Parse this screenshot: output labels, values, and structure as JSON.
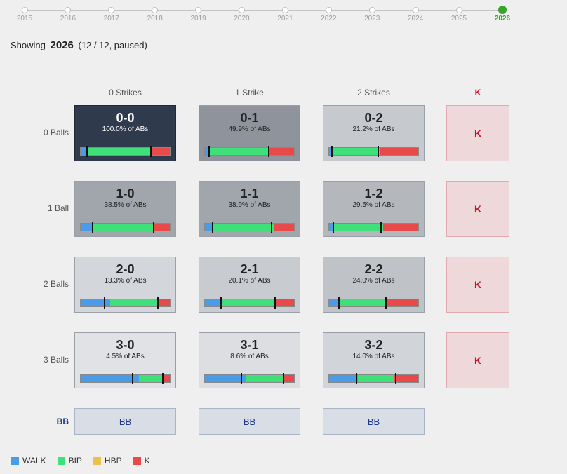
{
  "timeline": {
    "years": [
      "2015",
      "2016",
      "2017",
      "2018",
      "2019",
      "2020",
      "2021",
      "2022",
      "2023",
      "2024",
      "2025",
      "2026"
    ],
    "active": "2026"
  },
  "status": {
    "prefix": "Showing",
    "year": "2026",
    "detail": "(12 / 12, paused)"
  },
  "columns": [
    "0 Strikes",
    "1 Strike",
    "2 Strikes",
    "K"
  ],
  "rows": [
    "0 Balls",
    "1 Ball",
    "2 Balls",
    "3 Balls",
    "BB"
  ],
  "colors": {
    "walk": "#4a9be8",
    "bip": "#3fe07a",
    "hbp": "#e9c24a",
    "k": "#e84a4a"
  },
  "cells": [
    {
      "count": "0-0",
      "pct": "100.0% of ABs",
      "bg": "#2f3b4d",
      "dark": true,
      "walk": 0.07,
      "bip": 0.71,
      "hbp": 0,
      "k": 0.22,
      "ticks": [
        0.07,
        0.79
      ]
    },
    {
      "count": "0-1",
      "pct": "49.9% of ABs",
      "bg": "#8f949c",
      "dark": false,
      "walk": 0.05,
      "bip": 0.67,
      "hbp": 0,
      "k": 0.28,
      "ticks": [
        0.05,
        0.72
      ]
    },
    {
      "count": "0-2",
      "pct": "21.2% of ABs",
      "bg": "#c6c9cd",
      "dark": false,
      "walk": 0.03,
      "bip": 0.54,
      "hbp": 0,
      "k": 0.43,
      "ticks": [
        0.03,
        0.55
      ]
    },
    {
      "count": "1-0",
      "pct": "38.5% of ABs",
      "bg": "#a1a6ad",
      "dark": false,
      "walk": 0.13,
      "bip": 0.68,
      "hbp": 0,
      "k": 0.19,
      "ticks": [
        0.13,
        0.82
      ]
    },
    {
      "count": "1-1",
      "pct": "38.9% of ABs",
      "bg": "#a1a6ad",
      "dark": false,
      "walk": 0.09,
      "bip": 0.69,
      "hbp": 0,
      "k": 0.22,
      "ticks": [
        0.09,
        0.75
      ]
    },
    {
      "count": "1-2",
      "pct": "29.5% of ABs",
      "bg": "#b4b8bd",
      "dark": false,
      "walk": 0.05,
      "bip": 0.56,
      "hbp": 0,
      "k": 0.39,
      "ticks": [
        0.05,
        0.58
      ]
    },
    {
      "count": "2-0",
      "pct": "13.3% of ABs",
      "bg": "#d3d6da",
      "dark": false,
      "walk": 0.33,
      "bip": 0.55,
      "hbp": 0,
      "k": 0.12,
      "ticks": [
        0.27,
        0.87
      ]
    },
    {
      "count": "2-1",
      "pct": "20.1% of ABs",
      "bg": "#c8cbcf",
      "dark": false,
      "walk": 0.18,
      "bip": 0.61,
      "hbp": 0,
      "k": 0.21,
      "ticks": [
        0.18,
        0.79
      ]
    },
    {
      "count": "2-2",
      "pct": "24.0% of ABs",
      "bg": "#bfc2c6",
      "dark": false,
      "walk": 0.11,
      "bip": 0.54,
      "hbp": 0,
      "k": 0.35,
      "ticks": [
        0.11,
        0.64
      ]
    },
    {
      "count": "3-0",
      "pct": "4.5% of ABs",
      "bg": "#e0e2e5",
      "dark": false,
      "walk": 0.65,
      "bip": 0.27,
      "hbp": 0,
      "k": 0.08,
      "ticks": [
        0.58,
        0.92
      ]
    },
    {
      "count": "3-1",
      "pct": "8.6% of ABs",
      "bg": "#dcdee1",
      "dark": false,
      "walk": 0.46,
      "bip": 0.43,
      "hbp": 0,
      "k": 0.11,
      "ticks": [
        0.41,
        0.88
      ]
    },
    {
      "count": "3-2",
      "pct": "14.0% of ABs",
      "bg": "#d1d4d8",
      "dark": false,
      "walk": 0.32,
      "bip": 0.41,
      "hbp": 0,
      "k": 0.27,
      "ticks": [
        0.31,
        0.75
      ]
    }
  ],
  "k_label": "K",
  "bb_label": "BB",
  "legend": [
    {
      "label": "WALK",
      "color": "#4a9be8"
    },
    {
      "label": "BIP",
      "color": "#3fe07a"
    },
    {
      "label": "HBP",
      "color": "#e9c24a"
    },
    {
      "label": "K",
      "color": "#e84a4a"
    }
  ]
}
